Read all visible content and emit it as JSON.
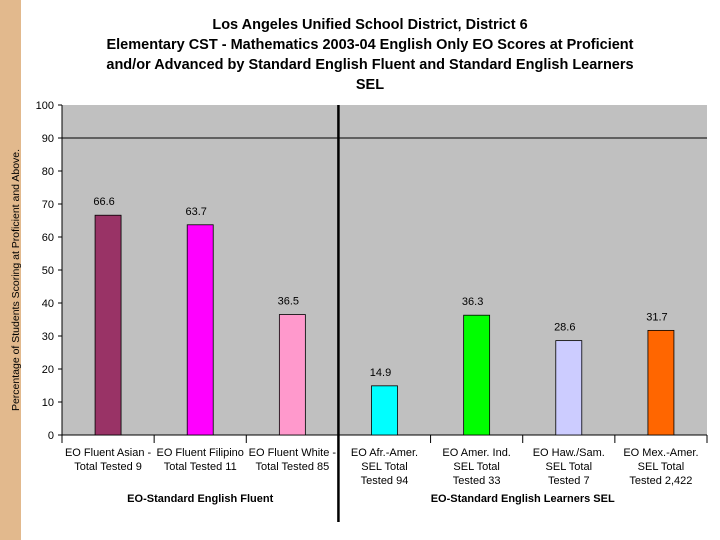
{
  "title_lines": [
    "Los Angeles Unified School District, District 6",
    "Elementary CST - Mathematics 2003-04 English Only EO Scores at Proficient",
    "and/or Advanced by Standard English Fluent and Standard English Learners",
    "SEL"
  ],
  "chart_data": {
    "type": "bar",
    "title": "Los Angeles Unified School District, District 6 Elementary CST - Mathematics 2003-04 English Only EO Scores at Proficient and/or Advanced by Standard English Fluent and Standard English Learners SEL",
    "ylabel": "Percentage of Students Scoring at Proficient and Above.",
    "ylim": [
      0,
      100
    ],
    "yticks": [
      0,
      10,
      20,
      30,
      40,
      50,
      60,
      70,
      80,
      90,
      100
    ],
    "reference_line": 90,
    "grid": false,
    "categories": [
      [
        "EO Fluent Asian -",
        "Total Tested 9"
      ],
      [
        "EO Fluent Filipino",
        "Total Tested 11"
      ],
      [
        "EO Fluent White -",
        "Total Tested 85"
      ],
      [
        "EO Afr.-Amer.",
        "SEL   Total",
        "Tested 94"
      ],
      [
        "EO Amer. Ind.",
        "SEL   Total",
        "Tested 33"
      ],
      [
        "EO Haw./Sam.",
        "SEL   Total",
        "Tested 7"
      ],
      [
        "EO Mex.-Amer.",
        "SEL   Total",
        "Tested 2,422"
      ]
    ],
    "values": [
      66.6,
      63.7,
      36.5,
      14.9,
      36.3,
      28.6,
      31.7
    ],
    "value_labels": [
      "66.6",
      "63.7",
      "36.5",
      "14.9",
      "36.3",
      "28.6",
      "31.7"
    ],
    "colors": [
      "#993366",
      "#ff00ff",
      "#ff99cc",
      "#00ffff",
      "#00ff00",
      "#ccccff",
      "#ff6600"
    ],
    "groups": [
      {
        "label": "EO-Standard English Fluent",
        "categories": [
          0,
          1,
          2
        ]
      },
      {
        "label": "EO-Standard English Learners SEL",
        "categories": [
          3,
          4,
          5,
          6
        ]
      }
    ],
    "plot_background": "#c0c0c0"
  }
}
